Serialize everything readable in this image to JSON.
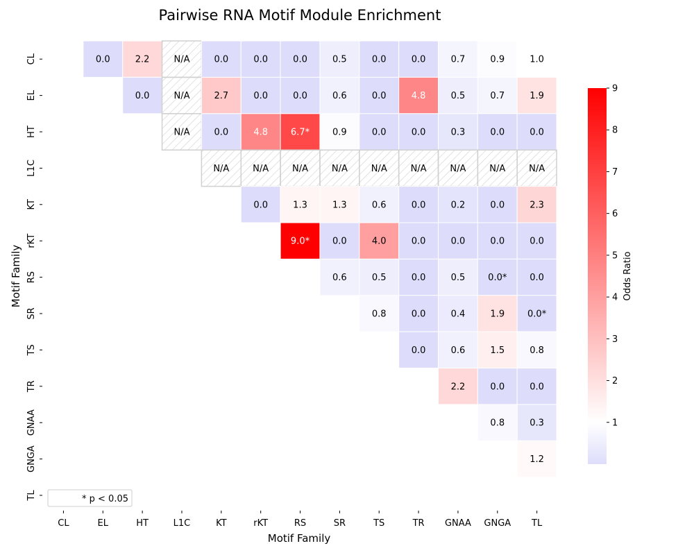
{
  "chart_data": {
    "type": "heatmap",
    "title": "Pairwise RNA Motif Module Enrichment",
    "xlabel": "Motif Family",
    "ylabel": "Motif Family",
    "categories": [
      "CL",
      "EL",
      "HT",
      "L1C",
      "KT",
      "rKT",
      "RS",
      "SR",
      "TS",
      "TR",
      "GNAA",
      "GNGA",
      "TL"
    ],
    "na_text": "N/A",
    "legend_text": "* p < 0.05",
    "colorbar": {
      "label": "Odds Ratio",
      "range": [
        0,
        9
      ],
      "center": 1,
      "ticks": [
        1,
        2,
        3,
        4,
        5,
        6,
        7,
        8,
        9
      ],
      "colors": {
        "low": "#ddddfb",
        "center": "#ffffff",
        "high": "#ff0000"
      }
    },
    "cells": [
      {
        "row": "CL",
        "col": "EL",
        "value": 0.0,
        "label": "0.0"
      },
      {
        "row": "CL",
        "col": "HT",
        "value": 2.2,
        "label": "2.2"
      },
      {
        "row": "CL",
        "col": "L1C",
        "value": null,
        "label": "N/A"
      },
      {
        "row": "CL",
        "col": "KT",
        "value": 0.0,
        "label": "0.0"
      },
      {
        "row": "CL",
        "col": "rKT",
        "value": 0.0,
        "label": "0.0"
      },
      {
        "row": "CL",
        "col": "RS",
        "value": 0.0,
        "label": "0.0"
      },
      {
        "row": "CL",
        "col": "SR",
        "value": 0.5,
        "label": "0.5"
      },
      {
        "row": "CL",
        "col": "TS",
        "value": 0.0,
        "label": "0.0"
      },
      {
        "row": "CL",
        "col": "TR",
        "value": 0.0,
        "label": "0.0"
      },
      {
        "row": "CL",
        "col": "GNAA",
        "value": 0.7,
        "label": "0.7"
      },
      {
        "row": "CL",
        "col": "GNGA",
        "value": 0.9,
        "label": "0.9"
      },
      {
        "row": "CL",
        "col": "TL",
        "value": 1.0,
        "label": "1.0"
      },
      {
        "row": "EL",
        "col": "HT",
        "value": 0.0,
        "label": "0.0"
      },
      {
        "row": "EL",
        "col": "L1C",
        "value": null,
        "label": "N/A"
      },
      {
        "row": "EL",
        "col": "KT",
        "value": 2.7,
        "label": "2.7"
      },
      {
        "row": "EL",
        "col": "rKT",
        "value": 0.0,
        "label": "0.0"
      },
      {
        "row": "EL",
        "col": "RS",
        "value": 0.0,
        "label": "0.0"
      },
      {
        "row": "EL",
        "col": "SR",
        "value": 0.6,
        "label": "0.6"
      },
      {
        "row": "EL",
        "col": "TS",
        "value": 0.0,
        "label": "0.0"
      },
      {
        "row": "EL",
        "col": "TR",
        "value": 4.8,
        "label": "4.8"
      },
      {
        "row": "EL",
        "col": "GNAA",
        "value": 0.5,
        "label": "0.5"
      },
      {
        "row": "EL",
        "col": "GNGA",
        "value": 0.7,
        "label": "0.7"
      },
      {
        "row": "EL",
        "col": "TL",
        "value": 1.9,
        "label": "1.9"
      },
      {
        "row": "HT",
        "col": "L1C",
        "value": null,
        "label": "N/A"
      },
      {
        "row": "HT",
        "col": "KT",
        "value": 0.0,
        "label": "0.0"
      },
      {
        "row": "HT",
        "col": "rKT",
        "value": 4.8,
        "label": "4.8"
      },
      {
        "row": "HT",
        "col": "RS",
        "value": 6.7,
        "label": "6.7*"
      },
      {
        "row": "HT",
        "col": "SR",
        "value": 0.9,
        "label": "0.9"
      },
      {
        "row": "HT",
        "col": "TS",
        "value": 0.0,
        "label": "0.0"
      },
      {
        "row": "HT",
        "col": "TR",
        "value": 0.0,
        "label": "0.0"
      },
      {
        "row": "HT",
        "col": "GNAA",
        "value": 0.3,
        "label": "0.3"
      },
      {
        "row": "HT",
        "col": "GNGA",
        "value": 0.0,
        "label": "0.0"
      },
      {
        "row": "HT",
        "col": "TL",
        "value": 0.0,
        "label": "0.0"
      },
      {
        "row": "L1C",
        "col": "KT",
        "value": null,
        "label": "N/A"
      },
      {
        "row": "L1C",
        "col": "rKT",
        "value": null,
        "label": "N/A"
      },
      {
        "row": "L1C",
        "col": "RS",
        "value": null,
        "label": "N/A"
      },
      {
        "row": "L1C",
        "col": "SR",
        "value": null,
        "label": "N/A"
      },
      {
        "row": "L1C",
        "col": "TS",
        "value": null,
        "label": "N/A"
      },
      {
        "row": "L1C",
        "col": "TR",
        "value": null,
        "label": "N/A"
      },
      {
        "row": "L1C",
        "col": "GNAA",
        "value": null,
        "label": "N/A"
      },
      {
        "row": "L1C",
        "col": "GNGA",
        "value": null,
        "label": "N/A"
      },
      {
        "row": "L1C",
        "col": "TL",
        "value": null,
        "label": "N/A"
      },
      {
        "row": "KT",
        "col": "rKT",
        "value": 0.0,
        "label": "0.0"
      },
      {
        "row": "KT",
        "col": "RS",
        "value": 1.3,
        "label": "1.3"
      },
      {
        "row": "KT",
        "col": "SR",
        "value": 1.3,
        "label": "1.3"
      },
      {
        "row": "KT",
        "col": "TS",
        "value": 0.6,
        "label": "0.6"
      },
      {
        "row": "KT",
        "col": "TR",
        "value": 0.0,
        "label": "0.0"
      },
      {
        "row": "KT",
        "col": "GNAA",
        "value": 0.2,
        "label": "0.2"
      },
      {
        "row": "KT",
        "col": "GNGA",
        "value": 0.0,
        "label": "0.0"
      },
      {
        "row": "KT",
        "col": "TL",
        "value": 2.3,
        "label": "2.3"
      },
      {
        "row": "rKT",
        "col": "RS",
        "value": 9.0,
        "label": "9.0*"
      },
      {
        "row": "rKT",
        "col": "SR",
        "value": 0.0,
        "label": "0.0"
      },
      {
        "row": "rKT",
        "col": "TS",
        "value": 4.0,
        "label": "4.0"
      },
      {
        "row": "rKT",
        "col": "TR",
        "value": 0.0,
        "label": "0.0"
      },
      {
        "row": "rKT",
        "col": "GNAA",
        "value": 0.0,
        "label": "0.0"
      },
      {
        "row": "rKT",
        "col": "GNGA",
        "value": 0.0,
        "label": "0.0"
      },
      {
        "row": "rKT",
        "col": "TL",
        "value": 0.0,
        "label": "0.0"
      },
      {
        "row": "RS",
        "col": "SR",
        "value": 0.6,
        "label": "0.6"
      },
      {
        "row": "RS",
        "col": "TS",
        "value": 0.5,
        "label": "0.5"
      },
      {
        "row": "RS",
        "col": "TR",
        "value": 0.0,
        "label": "0.0"
      },
      {
        "row": "RS",
        "col": "GNAA",
        "value": 0.5,
        "label": "0.5"
      },
      {
        "row": "RS",
        "col": "GNGA",
        "value": 0.0,
        "label": "0.0*"
      },
      {
        "row": "RS",
        "col": "TL",
        "value": 0.0,
        "label": "0.0"
      },
      {
        "row": "SR",
        "col": "TS",
        "value": 0.8,
        "label": "0.8"
      },
      {
        "row": "SR",
        "col": "TR",
        "value": 0.0,
        "label": "0.0"
      },
      {
        "row": "SR",
        "col": "GNAA",
        "value": 0.4,
        "label": "0.4"
      },
      {
        "row": "SR",
        "col": "GNGA",
        "value": 1.9,
        "label": "1.9"
      },
      {
        "row": "SR",
        "col": "TL",
        "value": 0.0,
        "label": "0.0*"
      },
      {
        "row": "TS",
        "col": "TR",
        "value": 0.0,
        "label": "0.0"
      },
      {
        "row": "TS",
        "col": "GNAA",
        "value": 0.6,
        "label": "0.6"
      },
      {
        "row": "TS",
        "col": "GNGA",
        "value": 1.5,
        "label": "1.5"
      },
      {
        "row": "TS",
        "col": "TL",
        "value": 0.8,
        "label": "0.8"
      },
      {
        "row": "TR",
        "col": "GNAA",
        "value": 2.2,
        "label": "2.2"
      },
      {
        "row": "TR",
        "col": "GNGA",
        "value": 0.0,
        "label": "0.0"
      },
      {
        "row": "TR",
        "col": "TL",
        "value": 0.0,
        "label": "0.0"
      },
      {
        "row": "GNAA",
        "col": "GNGA",
        "value": 0.8,
        "label": "0.8"
      },
      {
        "row": "GNAA",
        "col": "TL",
        "value": 0.3,
        "label": "0.3"
      },
      {
        "row": "GNGA",
        "col": "TL",
        "value": 1.2,
        "label": "1.2"
      }
    ]
  }
}
